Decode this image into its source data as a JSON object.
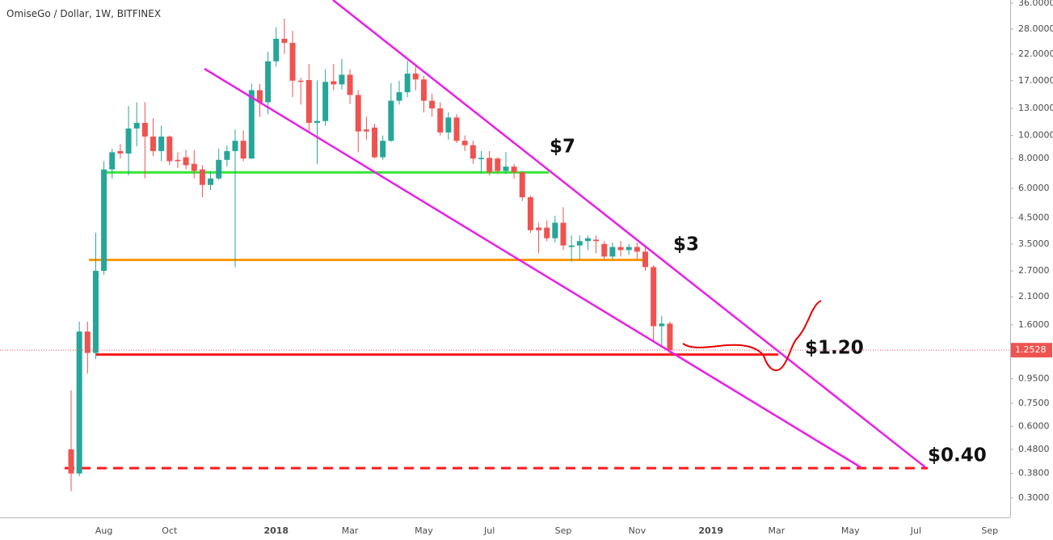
{
  "chart_data": {
    "type": "candlestick",
    "title": "OmiseGo / Dollar, 1W, BITFINEX",
    "log_scale": true,
    "up_color": "#26a69a",
    "down_color": "#ef5350",
    "ylim": [
      0.2485,
      37.1
    ],
    "yticks": [
      {
        "value": 36,
        "label": "36.0000"
      },
      {
        "value": 28,
        "label": "28.0000"
      },
      {
        "value": 22,
        "label": "22.0000"
      },
      {
        "value": 17,
        "label": "17.0000"
      },
      {
        "value": 13,
        "label": "13.0000"
      },
      {
        "value": 10,
        "label": "10.0000"
      },
      {
        "value": 8,
        "label": "8.0000"
      },
      {
        "value": 6,
        "label": "6.0000"
      },
      {
        "value": 4.5,
        "label": "4.5000"
      },
      {
        "value": 3.5,
        "label": "3.5000"
      },
      {
        "value": 2.7,
        "label": "2.7000"
      },
      {
        "value": 2.1,
        "label": "2.1000"
      },
      {
        "value": 1.6,
        "label": "1.6000"
      },
      {
        "value": 0.95,
        "label": "0.9500"
      },
      {
        "value": 0.75,
        "label": "0.7500"
      },
      {
        "value": 0.6,
        "label": "0.6000"
      },
      {
        "value": 0.48,
        "label": "0.4800"
      },
      {
        "value": 0.38,
        "label": "0.3800"
      },
      {
        "value": 0.3,
        "label": "0.3000"
      }
    ],
    "categories": [
      null,
      null,
      null,
      null,
      "Aug",
      null,
      null,
      null,
      null,
      null,
      null,
      null,
      "Oct",
      null,
      null,
      null,
      null,
      null,
      null,
      null,
      null,
      null,
      null,
      null,
      null,
      "2018",
      null,
      null,
      null,
      null,
      null,
      null,
      null,
      null,
      "Mar",
      null,
      null,
      null,
      null,
      null,
      null,
      null,
      null,
      "May",
      null,
      null,
      null,
      null,
      null,
      null,
      null,
      "Jul",
      null,
      null,
      null,
      null,
      null,
      null,
      null,
      null,
      "Sep",
      null,
      null,
      null,
      null,
      null,
      null,
      null,
      null,
      "Nov",
      null,
      null,
      null,
      null,
      null,
      null,
      null,
      null,
      "2019",
      null,
      null,
      null,
      null,
      null,
      null,
      null,
      "Mar",
      null,
      null,
      null,
      null,
      null,
      null,
      null,
      null,
      "May",
      null,
      null,
      null,
      null,
      null,
      null,
      null,
      "Jul",
      null,
      null,
      null,
      null,
      null,
      null,
      null,
      null,
      "Sep",
      null,
      null
    ],
    "open": [
      0.48,
      0.38,
      1.5,
      1.22,
      2.7,
      7.2,
      8.6,
      8.4,
      10.7,
      11.3,
      9.9,
      8.6,
      9.9,
      7.9,
      8.1,
      7.6,
      7.2,
      6.2,
      6.6,
      7.9,
      8.6,
      9.5,
      8,
      15.5,
      13.8,
      20.5,
      25.5,
      24.5,
      17,
      17.1,
      11.3,
      11.5,
      16.9,
      16.4,
      18,
      14.8,
      10.6,
      10.8,
      8.1,
      9.5,
      14,
      15.2,
      18.2,
      17.2,
      14,
      13,
      10.3,
      11.9,
      9.5,
      9.1,
      7.95,
      8.05,
      8,
      7.1,
      7.4,
      7,
      5.5,
      4.1,
      4.1,
      3.7,
      4.3,
      3.4,
      3.45,
      3.6,
      3.65,
      3.5,
      3.1,
      3.4,
      3.3,
      3.4,
      3.25,
      2.8,
      1.58,
      1.62,
      null,
      null,
      null,
      null,
      null,
      null,
      null,
      null,
      null,
      null,
      null,
      null,
      null,
      null,
      null,
      null,
      null,
      null,
      null,
      null,
      null,
      null,
      null,
      null,
      null,
      null,
      null,
      null,
      null,
      null,
      null,
      null,
      null,
      null,
      null,
      null,
      null,
      null,
      null,
      null,
      null
    ],
    "high": [
      0.85,
      1.65,
      1.65,
      3.9,
      7.8,
      8.8,
      9.2,
      13.3,
      13.8,
      13.8,
      11.8,
      11,
      10,
      8.5,
      8.7,
      8.7,
      7.5,
      7.1,
      8.8,
      9.1,
      10.6,
      10.5,
      16.5,
      16.5,
      22.5,
      28.5,
      31,
      27.5,
      17.5,
      20,
      17,
      19,
      20,
      21,
      19,
      15.5,
      12,
      11.2,
      10,
      16.6,
      17,
      20.6,
      19.5,
      17.8,
      15,
      13.8,
      12.5,
      12.3,
      10,
      9.5,
      8.6,
      8.6,
      8.1,
      8.5,
      7.6,
      7.1,
      5.6,
      4.3,
      4.4,
      4.6,
      5,
      3.8,
      3.8,
      3.8,
      3.8,
      3.6,
      3.55,
      3.6,
      3.5,
      3.55,
      3.4,
      2.85,
      1.75,
      1.65,
      null,
      null,
      null,
      null,
      null,
      null,
      null,
      null,
      null,
      null,
      null,
      null,
      null,
      null,
      null,
      null,
      null,
      null,
      null,
      null,
      null,
      null,
      null,
      null,
      null,
      null,
      null,
      null,
      null,
      null,
      null,
      null,
      null,
      null,
      null,
      null,
      null,
      null,
      null,
      null,
      null
    ],
    "low": [
      0.32,
      0.37,
      1.0,
      1.15,
      2.6,
      6.6,
      8.0,
      6.8,
      9,
      6.6,
      8.2,
      7.8,
      7.5,
      7.3,
      7.2,
      6.6,
      5.5,
      5.9,
      6.5,
      7.4,
      2.8,
      7.8,
      8.0,
      12,
      12.3,
      19.5,
      22,
      14.5,
      13.5,
      10.4,
      7.6,
      11,
      15.5,
      15.6,
      13.6,
      8.5,
      9.6,
      8.0,
      7.9,
      9.4,
      13.5,
      14.5,
      15.5,
      12.5,
      12,
      10,
      9.6,
      9.3,
      8.6,
      7.6,
      6.9,
      6.8,
      6.9,
      6.9,
      6.6,
      5.3,
      3.9,
      3.2,
      3.6,
      3.55,
      3.3,
      2.95,
      3.0,
      3.3,
      3.2,
      3.0,
      3.0,
      3.1,
      3.15,
      3.0,
      2.7,
      1.35,
      1.3,
      1.2,
      null,
      null,
      null,
      null,
      null,
      null,
      null,
      null,
      null,
      null,
      null,
      null,
      null,
      null,
      null,
      null,
      null,
      null,
      null,
      null,
      null,
      null,
      null,
      null,
      null,
      null,
      null,
      null,
      null,
      null,
      null,
      null,
      null,
      null,
      null,
      null,
      null,
      null,
      null,
      null,
      null
    ],
    "close": [
      0.38,
      1.5,
      1.22,
      2.7,
      7.2,
      8.5,
      8.4,
      10.7,
      11.3,
      9.9,
      8.6,
      9.9,
      7.8,
      7.8,
      7.5,
      7.1,
      6.2,
      6.6,
      7.9,
      8.6,
      9.5,
      8.0,
      15.5,
      13.8,
      20.5,
      25.5,
      24.5,
      17,
      16.8,
      11.3,
      11.5,
      16.8,
      16.4,
      18,
      14.8,
      10.4,
      10.4,
      8.1,
      9.5,
      14,
      15.2,
      18.2,
      17.2,
      14,
      13,
      10.3,
      11.9,
      9.5,
      9.1,
      8.0,
      8.05,
      7.0,
      7.1,
      7.4,
      7.0,
      5.5,
      4.0,
      4.0,
      3.7,
      4.3,
      3.45,
      3.45,
      3.6,
      3.7,
      3.6,
      3.1,
      3.4,
      3.3,
      3.4,
      3.25,
      2.8,
      1.58,
      1.62,
      1.2528,
      null,
      null,
      null,
      null,
      null,
      null,
      null,
      null,
      null,
      null,
      null,
      null,
      null,
      null,
      null,
      null,
      null,
      null,
      null,
      null,
      null,
      null,
      null,
      null,
      null,
      null,
      null,
      null,
      null,
      null,
      null,
      null,
      null,
      null,
      null,
      null,
      null,
      null,
      null,
      null,
      null
    ],
    "levels": [
      {
        "value": 7,
        "label": "$7",
        "color": "#33e633",
        "style": "solid"
      },
      {
        "value": 3,
        "label": "$3",
        "color": "#ff9800",
        "style": "solid"
      },
      {
        "value": 1.2,
        "label": "$1.20",
        "color": "#ff1a1a",
        "style": "solid"
      },
      {
        "value": 0.4,
        "label": "$0.40",
        "color": "#ff1a1a",
        "style": "dashed"
      }
    ]
  }
}
